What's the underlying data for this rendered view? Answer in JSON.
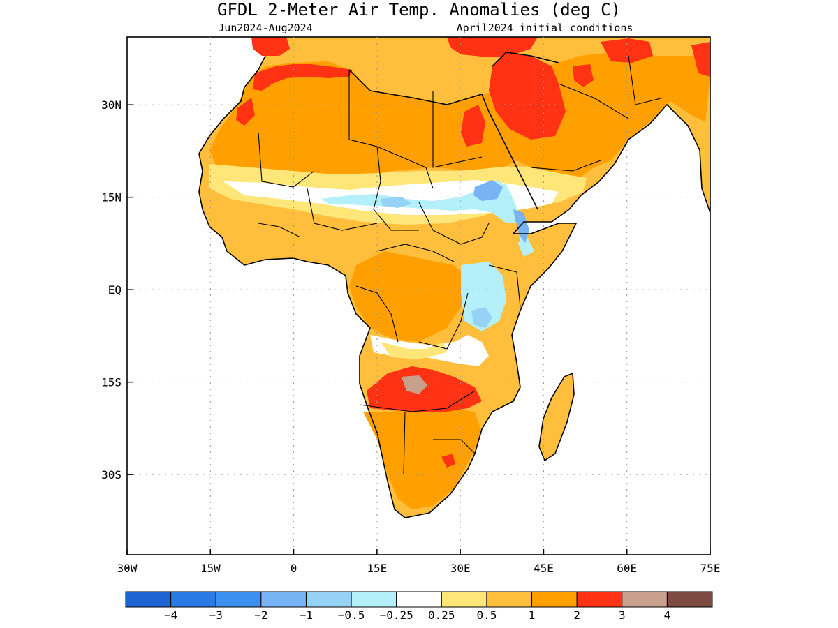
{
  "title": "GFDL 2-Meter Air Temp. Anomalies (deg C)",
  "subtitle_left": "Jun2024-Aug2024",
  "subtitle_right": "April2024 initial conditions",
  "map": {
    "lat_labels": [
      "30N",
      "15N",
      "EQ",
      "15S",
      "30S"
    ],
    "lon_labels": [
      "30W",
      "15W",
      "0",
      "15E",
      "30E",
      "45E",
      "60E",
      "75E"
    ],
    "lon_range": [
      -30,
      75
    ],
    "lat_range": [
      -43,
      41
    ],
    "grid": "dotted",
    "region": "Africa"
  },
  "colorbar": {
    "colors": [
      "#1e64d2",
      "#2a7ae6",
      "#3c91f0",
      "#78b4f5",
      "#96d2f5",
      "#b4f0fa",
      "#ffffff",
      "#ffe678",
      "#ffbe3c",
      "#ffa000",
      "#ff3214",
      "#c8a08c",
      "#7d4b41"
    ],
    "labels": [
      "−4",
      "−3",
      "−2",
      "−1",
      "−0.5",
      "−0.25",
      "0.25",
      "0.5",
      "1",
      "2",
      "3",
      "4"
    ]
  }
}
